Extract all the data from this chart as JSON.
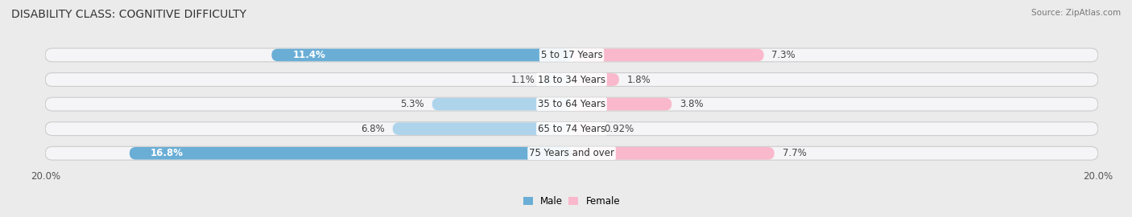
{
  "title": "DISABILITY CLASS: COGNITIVE DIFFICULTY",
  "source": "Source: ZipAtlas.com",
  "categories": [
    "5 to 17 Years",
    "18 to 34 Years",
    "35 to 64 Years",
    "65 to 74 Years",
    "75 Years and over"
  ],
  "male_values": [
    11.4,
    1.1,
    5.3,
    6.8,
    16.8
  ],
  "female_values": [
    7.3,
    1.8,
    3.8,
    0.92,
    7.7
  ],
  "male_labels": [
    "11.4%",
    "1.1%",
    "5.3%",
    "6.8%",
    "16.8%"
  ],
  "female_labels": [
    "7.3%",
    "1.8%",
    "3.8%",
    "0.92%",
    "7.7%"
  ],
  "male_color_strong": "#6AAED6",
  "male_color_light": "#AED4EC",
  "female_color_strong": "#F06090",
  "female_color_light": "#F9B8CC",
  "axis_max": 20.0,
  "bg_color": "#ebebeb",
  "bar_bg_color": "#f5f5f7",
  "bar_height": 0.55,
  "title_fontsize": 10,
  "label_fontsize": 8.5,
  "axis_label_fontsize": 8.5,
  "source_fontsize": 7.5,
  "strong_threshold": 8.0
}
